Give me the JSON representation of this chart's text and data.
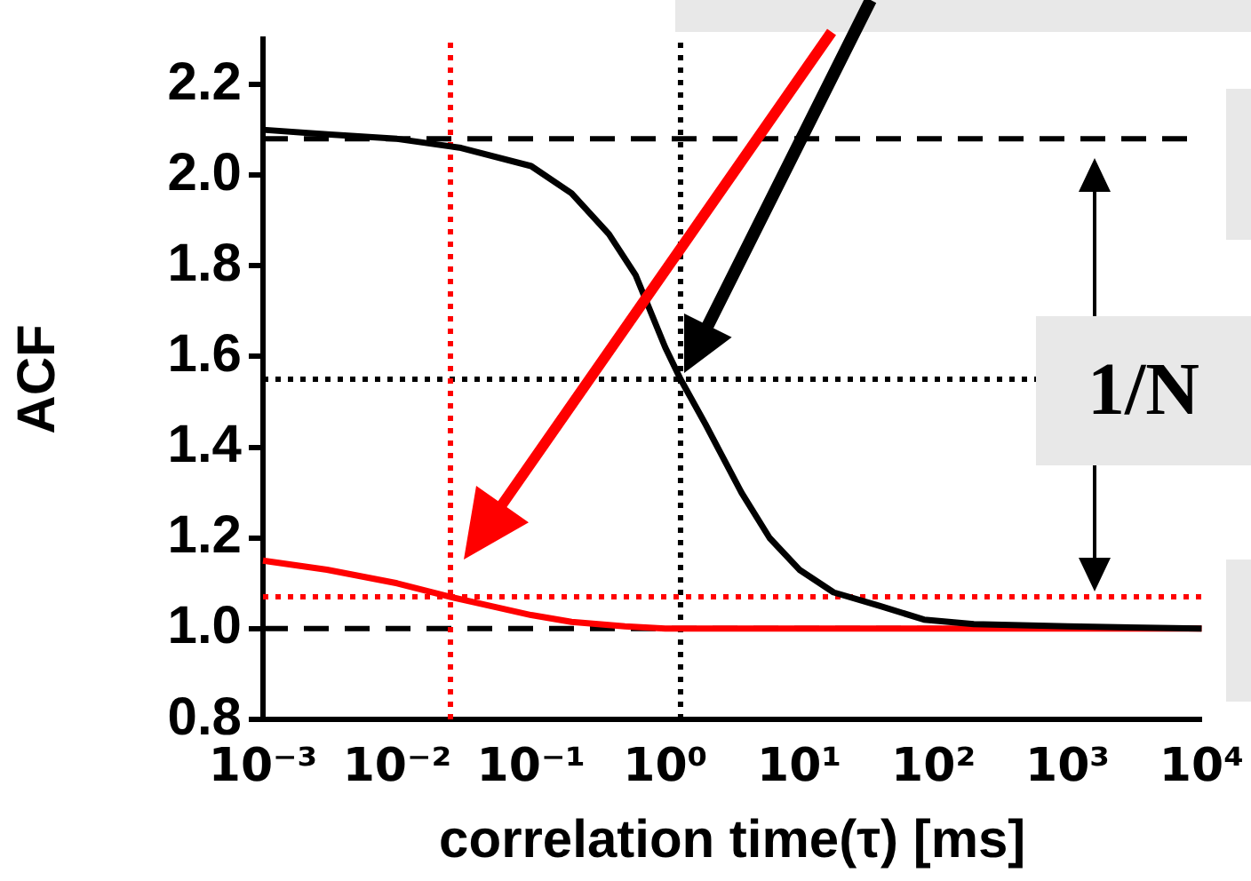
{
  "chart_data": {
    "type": "line",
    "xlabel": "correlation time(τ) [ms]",
    "ylabel": "ACF",
    "log": "x",
    "grid": false,
    "legend": false,
    "marker": "none",
    "line_style": "solid",
    "xlim": [
      0.001,
      10000
    ],
    "xticks": [
      {
        "value": 0.001,
        "label": "10⁻³"
      },
      {
        "value": 0.01,
        "label": "10⁻²"
      },
      {
        "value": 0.1,
        "label": "10⁻¹"
      },
      {
        "value": 1,
        "label": "10⁰"
      },
      {
        "value": 10,
        "label": "10¹"
      },
      {
        "value": 100,
        "label": "10²"
      },
      {
        "value": 1000,
        "label": "10³"
      },
      {
        "value": 10000,
        "label": "10⁴"
      }
    ],
    "ylim": [
      0.8,
      2.3
    ],
    "yticks": [
      {
        "value": 0.8,
        "label": "0.8"
      },
      {
        "value": 1,
        "label": "1.0"
      },
      {
        "value": 1.2,
        "label": "1.2"
      },
      {
        "value": 1.4,
        "label": "1.4"
      },
      {
        "value": 1.6,
        "label": "1.6"
      },
      {
        "value": 1.8,
        "label": "1.8"
      },
      {
        "value": 2,
        "label": "2.0"
      },
      {
        "value": 2.2,
        "label": "2.2"
      }
    ],
    "series": [
      {
        "color": "#000000",
        "x": [
          0.001,
          0.003,
          0.01,
          0.03,
          0.1,
          0.2,
          0.38,
          0.6,
          1,
          1.3,
          2,
          3.7,
          6,
          10,
          18,
          40,
          85,
          200,
          1000,
          10000
        ],
        "values": [
          2.1,
          2.09,
          2.08,
          2.06,
          2.02,
          1.96,
          1.87,
          1.78,
          1.62,
          1.55,
          1.45,
          1.3,
          1.2,
          1.13,
          1.08,
          1.05,
          1.02,
          1.01,
          1.005,
          1.0
        ]
      },
      {
        "color": "#ff0000",
        "x": [
          0.001,
          0.003,
          0.01,
          0.025,
          0.05,
          0.1,
          0.2,
          0.5,
          1,
          10,
          100,
          1000,
          10000
        ],
        "values": [
          1.15,
          1.13,
          1.1,
          1.07,
          1.05,
          1.03,
          1.015,
          1.005,
          1.0,
          1.0,
          1.0,
          1.0,
          1.0
        ]
      }
    ],
    "ref_lines": [
      {
        "axis": "y",
        "value": 2.08,
        "color": "#000000",
        "line_style": "dashed"
      },
      {
        "axis": "y",
        "value": 1.0,
        "color": "#000000",
        "line_style": "dashed"
      },
      {
        "axis": "y",
        "value": 1.55,
        "color": "#000000",
        "line_style": "dotted"
      },
      {
        "axis": "x",
        "value": 1.3,
        "color": "#000000",
        "line_style": "dotted"
      },
      {
        "axis": "y",
        "value": 1.07,
        "color": "#ff0000",
        "line_style": "dotted"
      },
      {
        "axis": "x",
        "value": 0.025,
        "color": "#ff0000",
        "line_style": "dotted"
      }
    ],
    "annotations": [
      "1/N"
    ]
  }
}
